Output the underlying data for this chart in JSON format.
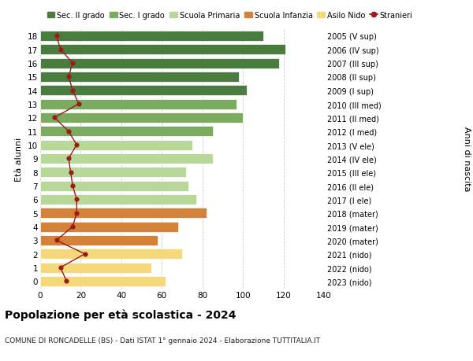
{
  "ages": [
    18,
    17,
    16,
    15,
    14,
    13,
    12,
    11,
    10,
    9,
    8,
    7,
    6,
    5,
    4,
    3,
    2,
    1,
    0
  ],
  "bar_values": [
    110,
    121,
    118,
    98,
    102,
    97,
    100,
    85,
    75,
    85,
    72,
    73,
    77,
    82,
    68,
    58,
    70,
    55,
    62
  ],
  "stranieri": [
    8,
    10,
    16,
    14,
    16,
    19,
    7,
    14,
    18,
    14,
    15,
    16,
    18,
    18,
    16,
    8,
    22,
    10,
    13
  ],
  "right_labels": [
    "2005 (V sup)",
    "2006 (IV sup)",
    "2007 (III sup)",
    "2008 (II sup)",
    "2009 (I sup)",
    "2010 (III med)",
    "2011 (II med)",
    "2012 (I med)",
    "2013 (V ele)",
    "2014 (IV ele)",
    "2015 (III ele)",
    "2016 (II ele)",
    "2017 (I ele)",
    "2018 (mater)",
    "2019 (mater)",
    "2020 (mater)",
    "2021 (nido)",
    "2022 (nido)",
    "2023 (nido)"
  ],
  "bar_colors": [
    "#4a7c3f",
    "#4a7c3f",
    "#4a7c3f",
    "#4a7c3f",
    "#4a7c3f",
    "#7aab5e",
    "#7aab5e",
    "#7aab5e",
    "#b8d89a",
    "#b8d89a",
    "#b8d89a",
    "#b8d89a",
    "#b8d89a",
    "#d4813a",
    "#d4813a",
    "#d4813a",
    "#f5d87a",
    "#f5d87a",
    "#f5d87a"
  ],
  "legend_labels": [
    "Sec. II grado",
    "Sec. I grado",
    "Scuola Primaria",
    "Scuola Infanzia",
    "Asilo Nido",
    "Stranieri"
  ],
  "legend_colors": [
    "#4a7c3f",
    "#7aab5e",
    "#b8d89a",
    "#d4813a",
    "#f5d87a",
    "#9e1a1a"
  ],
  "stranieri_color": "#9e1a1a",
  "title": "Popolazione per età scolastica - 2024",
  "subtitle": "COMUNE DI RONCADELLE (BS) - Dati ISTAT 1° gennaio 2024 - Elaborazione TUTTITALIA.IT",
  "ylabel_left": "Età alunni",
  "ylabel_right": "Anni di nascita",
  "xlim": [
    0,
    140
  ],
  "xticks": [
    0,
    20,
    40,
    60,
    80,
    100,
    120,
    140
  ],
  "ylim": [
    -0.55,
    18.55
  ],
  "bg_color": "#ffffff",
  "grid_color": "#cccccc"
}
